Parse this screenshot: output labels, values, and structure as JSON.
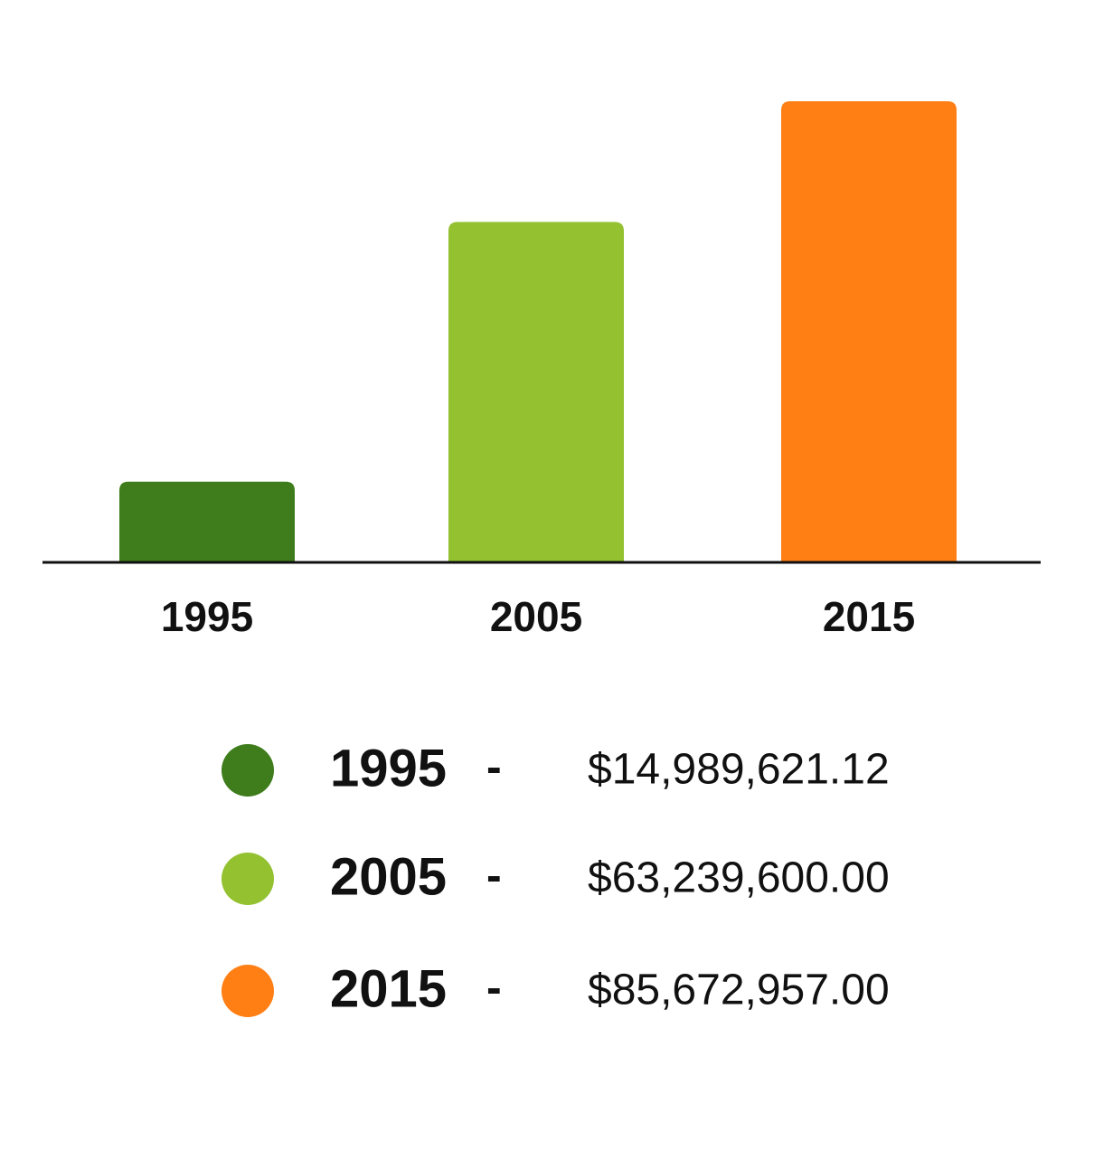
{
  "chart_data": {
    "type": "bar",
    "categories": [
      "1995",
      "2005",
      "2015"
    ],
    "values": [
      14989621.12,
      63239600.0,
      85672957.0
    ],
    "value_labels": [
      "$14,989,621.12",
      "$63,239,600.00",
      "$85,672,957.00"
    ],
    "colors": [
      "#3f7d1c",
      "#93c130",
      "#ff7f14"
    ],
    "legend_separator": "-"
  }
}
